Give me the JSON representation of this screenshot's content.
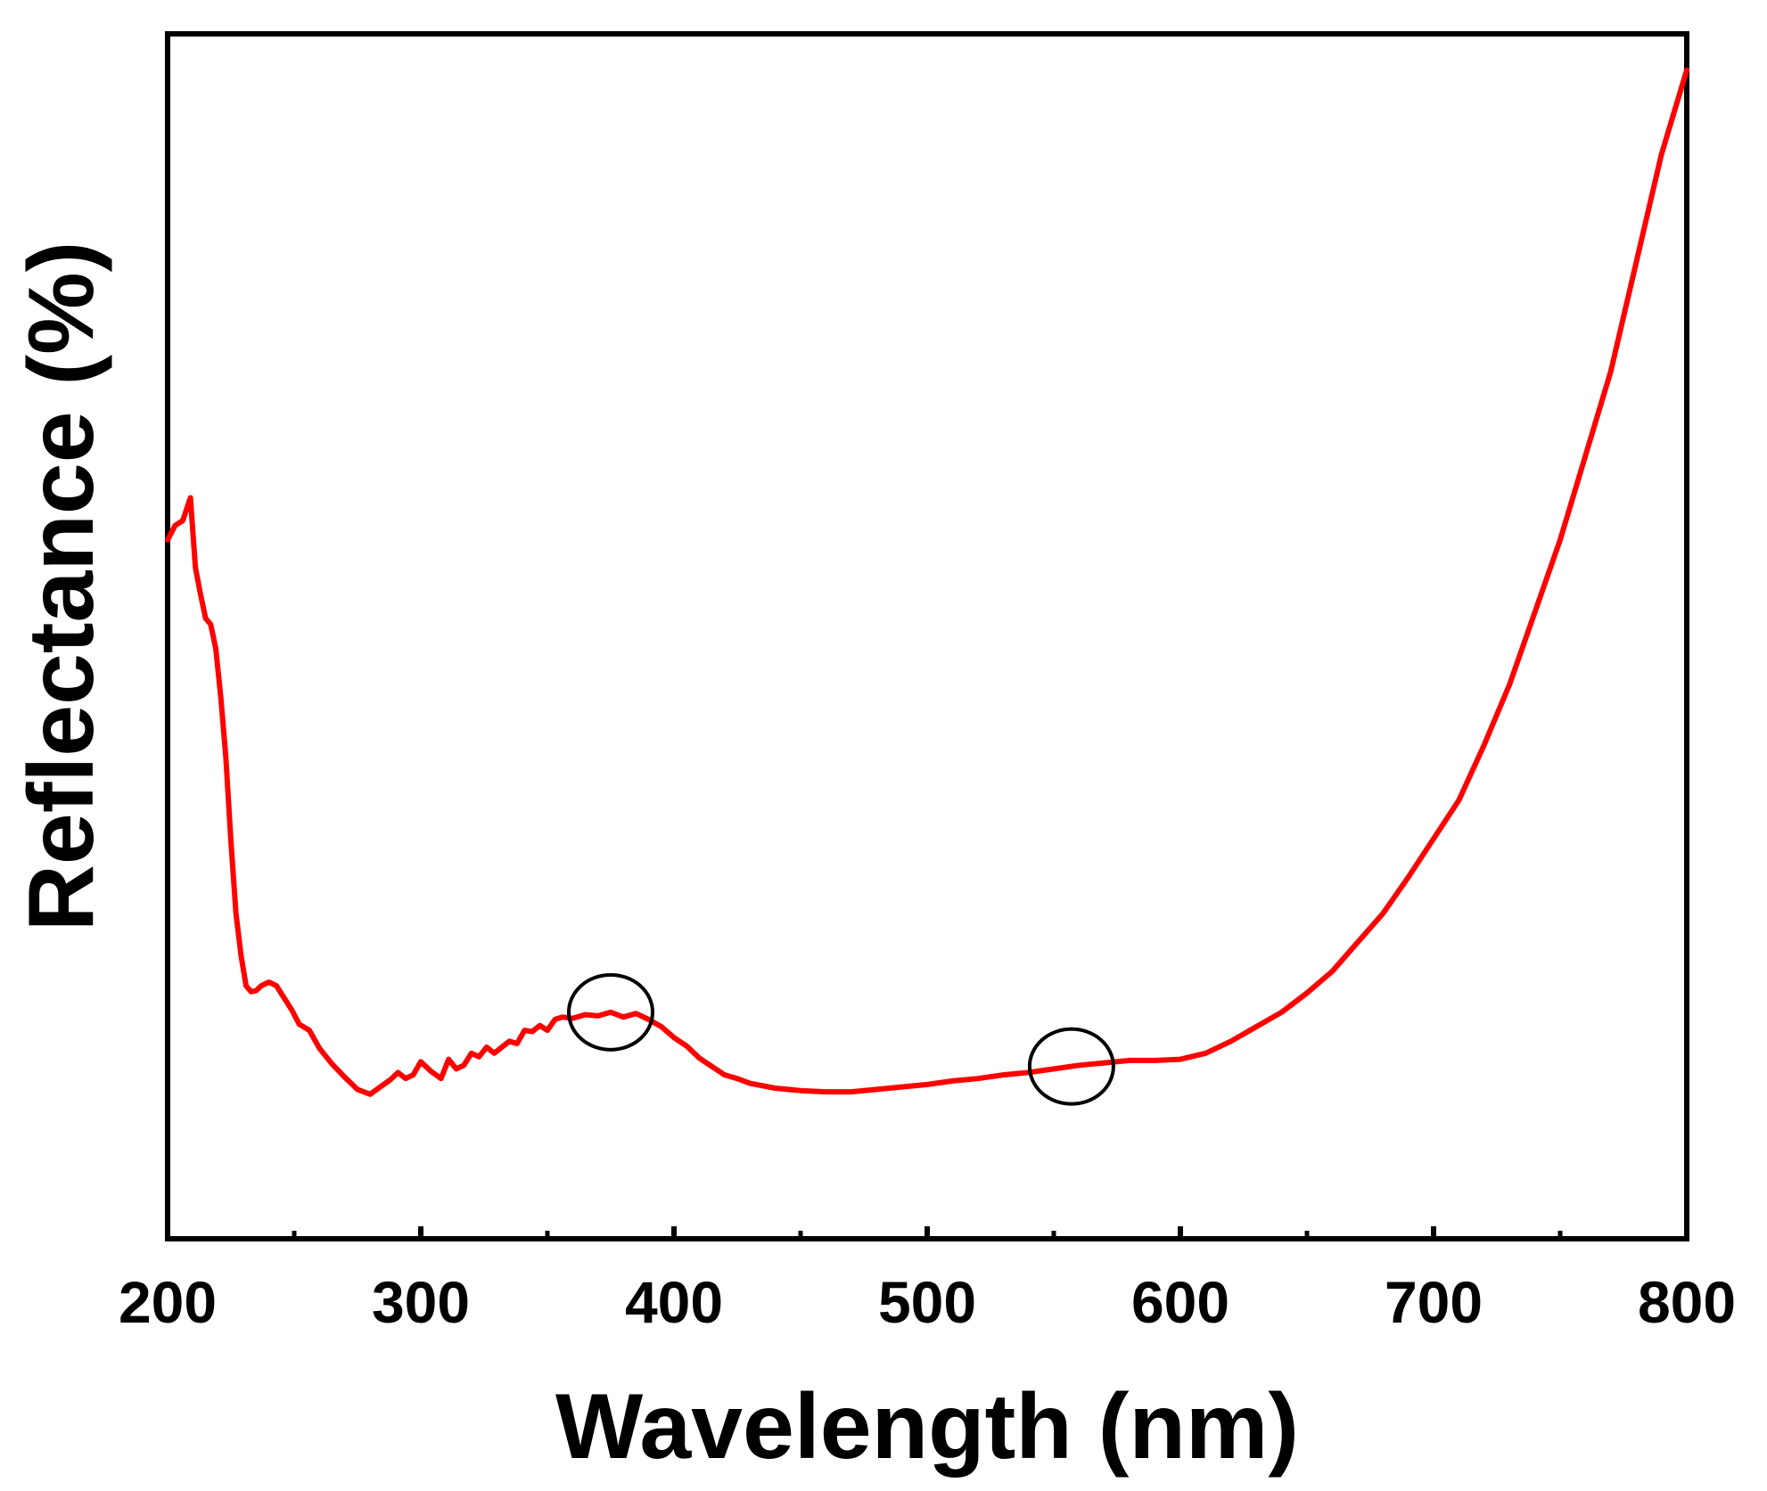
{
  "chart_data": {
    "type": "line",
    "title": "",
    "xlabel": "Wavelength (nm)",
    "ylabel": "Reflectance (%)",
    "xlim": [
      200,
      800
    ],
    "ylim": [
      0,
      100
    ],
    "x_major_ticks": [
      200,
      300,
      400,
      500,
      600,
      700,
      800
    ],
    "x_minor_ticks": [
      250,
      350,
      450,
      550,
      650,
      750
    ],
    "x_tick_labels": [
      "200",
      "300",
      "400",
      "500",
      "600",
      "700",
      "800"
    ],
    "y_tick_labels": [],
    "grid": false,
    "legend": [],
    "colors": {
      "series": "#ff0000",
      "axes": "#000000",
      "annotation": "#000000"
    },
    "series": [
      {
        "name": "Reflectance",
        "x": [
          200,
          203,
          206,
          209,
          211,
          213,
          215,
          217,
          219,
          221,
          223,
          225,
          227,
          229,
          231,
          233,
          235,
          237,
          240,
          243,
          246,
          249,
          252,
          256,
          260,
          265,
          270,
          275,
          280,
          284,
          288,
          291,
          294,
          297,
          300,
          304,
          308,
          311,
          314,
          317,
          320,
          323,
          326,
          329,
          332,
          335,
          338,
          341,
          344,
          347,
          350,
          353,
          356,
          360,
          365,
          370,
          375,
          380,
          385,
          390,
          395,
          400,
          405,
          410,
          415,
          420,
          425,
          430,
          440,
          450,
          460,
          470,
          480,
          490,
          500,
          510,
          520,
          530,
          540,
          550,
          560,
          570,
          580,
          590,
          600,
          610,
          620,
          630,
          640,
          650,
          660,
          670,
          680,
          690,
          700,
          710,
          720,
          730,
          740,
          750,
          760,
          770,
          780,
          790,
          800
        ],
        "values": [
          58,
          59.2,
          59.6,
          61.5,
          55.7,
          53.5,
          51.5,
          51,
          49,
          45,
          40,
          33,
          27,
          23.5,
          21,
          20.5,
          20.6,
          21,
          21.3,
          21,
          20,
          19,
          17.8,
          17.3,
          15.8,
          14.5,
          13.4,
          12.4,
          12,
          12.6,
          13.2,
          13.8,
          13.3,
          13.6,
          14.7,
          13.9,
          13.3,
          14.9,
          14.1,
          14.4,
          15.4,
          15.1,
          15.9,
          15.4,
          15.9,
          16.4,
          16.2,
          17.3,
          17.2,
          17.7,
          17.3,
          18.2,
          18.4,
          18.3,
          18.6,
          18.5,
          18.8,
          18.4,
          18.7,
          18.2,
          17.6,
          16.7,
          16,
          15,
          14.3,
          13.6,
          13.3,
          12.9,
          12.5,
          12.3,
          12.2,
          12.2,
          12.4,
          12.6,
          12.8,
          13.1,
          13.3,
          13.6,
          13.8,
          14.1,
          14.4,
          14.6,
          14.8,
          14.8,
          14.9,
          15.4,
          16.4,
          17.6,
          18.8,
          20.4,
          22.2,
          24.6,
          27,
          30,
          33.2,
          36.4,
          41,
          46,
          52,
          58,
          65,
          72,
          81,
          90,
          97
        ]
      }
    ],
    "annotations": [
      {
        "type": "ellipse",
        "x": 375,
        "y": 18.8
      },
      {
        "type": "ellipse",
        "x": 557,
        "y": 14.3
      }
    ]
  }
}
